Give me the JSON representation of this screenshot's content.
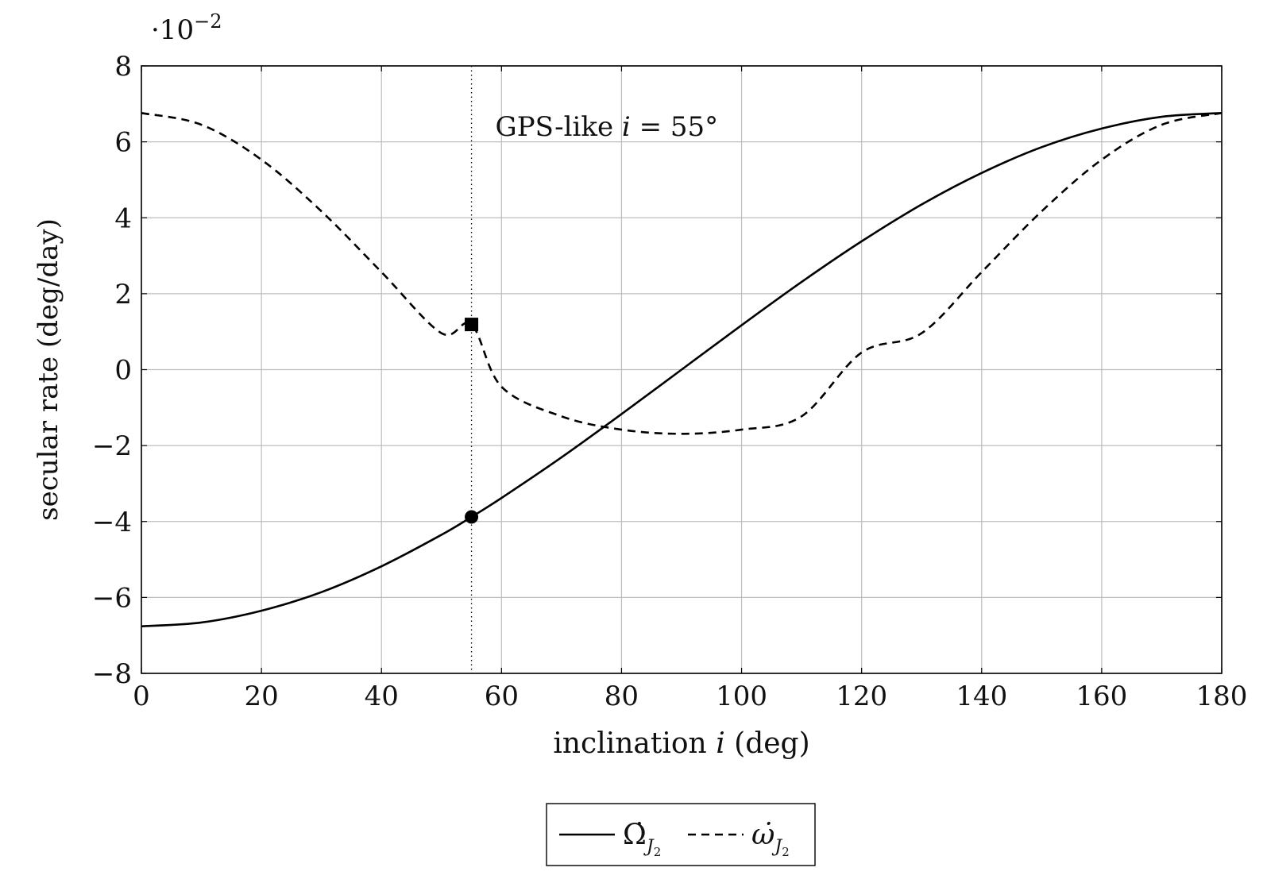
{
  "chart_data": {
    "type": "line",
    "scale_note": "·10",
    "scale_exponent": "−2",
    "xlabel": "inclination",
    "xlabel_var": "i",
    "xlabel_unit": "(deg)",
    "ylabel": "secular rate (deg/day)",
    "xlim": [
      0,
      180
    ],
    "ylim": [
      -8,
      8
    ],
    "x_ticks": [
      0,
      20,
      40,
      60,
      80,
      100,
      120,
      140,
      160,
      180
    ],
    "x_tick_labels": [
      "0",
      "20",
      "40",
      "60",
      "80",
      "100",
      "120",
      "140",
      "160",
      "180"
    ],
    "y_ticks": [
      -8,
      -6,
      -4,
      -2,
      0,
      2,
      4,
      6,
      8
    ],
    "y_tick_labels": [
      "−8",
      "−6",
      "−4",
      "−2",
      "0",
      "2",
      "4",
      "6",
      "8"
    ],
    "grid": true,
    "legend_position": "bottom-center",
    "x": [
      0,
      10,
      20,
      30,
      40,
      50,
      55,
      60,
      70,
      80,
      90,
      100,
      110,
      120,
      130,
      140,
      150,
      160,
      170,
      180
    ],
    "series": [
      {
        "name": "Ω̇",
        "subscript": "J",
        "subsubscript": "2",
        "style": "solid",
        "values": [
          -6.76,
          -6.66,
          -6.35,
          -5.86,
          -5.18,
          -4.35,
          -3.88,
          -3.38,
          -2.31,
          -1.17,
          0.0,
          1.17,
          2.31,
          3.38,
          4.35,
          5.18,
          5.86,
          6.35,
          6.66,
          6.76
        ]
      },
      {
        "name": "ω̇",
        "subscript": "J",
        "subsubscript": "2",
        "style": "dashed",
        "values": [
          6.76,
          6.45,
          5.53,
          4.17,
          2.57,
          0.96,
          1.19,
          -0.45,
          -1.23,
          -1.58,
          -1.69,
          -1.58,
          -1.23,
          0.45,
          0.96,
          2.57,
          4.17,
          5.53,
          6.45,
          6.76
        ]
      }
    ],
    "annotation": {
      "text": "GPS-like",
      "var": "i",
      "value_text": " = 55°",
      "x": 55
    },
    "markers": [
      {
        "series": "Ω̇",
        "x": 55,
        "y": -3.88,
        "shape": "circle"
      },
      {
        "series": "ω̇",
        "x": 55,
        "y": 1.19,
        "shape": "square"
      }
    ]
  }
}
